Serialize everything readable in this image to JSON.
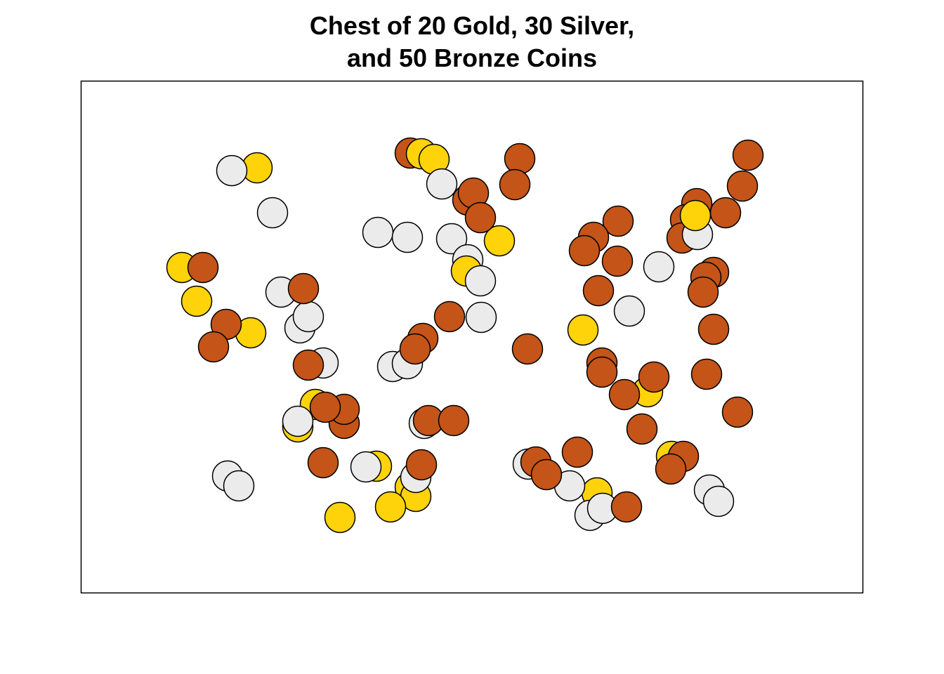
{
  "chart_data": {
    "type": "scatter",
    "title_lines": [
      "Chest of 20 Gold, 30 Silver,",
      "and 50 Bronze Coins"
    ],
    "xlabel": "",
    "ylabel": "",
    "axes_visible": false,
    "grid": false,
    "legend": "none",
    "colors": {
      "gold": "#FFD30A",
      "silver": "#EBEBEB",
      "bronze": "#C45418",
      "outline": "#000000"
    },
    "series": [
      {
        "key": "gold",
        "points": [
          [
            366,
            239
          ],
          [
            600,
            219
          ],
          [
            618,
            227
          ],
          [
            711,
            343
          ],
          [
            259,
            381
          ],
          [
            280,
            429
          ],
          [
            357,
            474
          ],
          [
            664,
            386
          ],
          [
            830,
            470
          ],
          [
            449,
            576
          ],
          [
            424,
            608
          ],
          [
            536,
            664
          ],
          [
            922,
            558
          ],
          [
            956,
            650
          ],
          [
            584,
            694
          ],
          [
            592,
            707
          ],
          [
            556,
            722
          ],
          [
            484,
            737
          ],
          [
            850,
            702
          ],
          [
            990,
            307
          ]
        ]
      },
      {
        "key": "silver",
        "points": [
          [
            330,
            243
          ],
          [
            388,
            303
          ],
          [
            629,
            262
          ],
          [
            538,
            331
          ],
          [
            580,
            338
          ],
          [
            643,
            340
          ],
          [
            666,
            370
          ],
          [
            684,
            400
          ],
          [
            400,
            416
          ],
          [
            427,
            467
          ],
          [
            439,
            451
          ],
          [
            685,
            452
          ],
          [
            460,
            517
          ],
          [
            559,
            522
          ],
          [
            580,
            518
          ],
          [
            993,
            334
          ],
          [
            938,
            380
          ],
          [
            896,
            443
          ],
          [
            604,
            603
          ],
          [
            424,
            600
          ],
          [
            324,
            678
          ],
          [
            340,
            692
          ],
          [
            521,
            665
          ],
          [
            592,
            680
          ],
          [
            752,
            661
          ],
          [
            811,
            692
          ],
          [
            840,
            734
          ],
          [
            858,
            724
          ],
          [
            1010,
            698
          ],
          [
            1023,
            714
          ]
        ]
      },
      {
        "key": "bronze",
        "points": [
          [
            584,
            218
          ],
          [
            740,
            226
          ],
          [
            733,
            263
          ],
          [
            666,
            285
          ],
          [
            674,
            275
          ],
          [
            684,
            310
          ],
          [
            1065,
            221
          ],
          [
            1057,
            265
          ],
          [
            1033,
            303
          ],
          [
            992,
            290
          ],
          [
            976,
            313
          ],
          [
            971,
            339
          ],
          [
            880,
            315
          ],
          [
            845,
            338
          ],
          [
            832,
            357
          ],
          [
            879,
            372
          ],
          [
            852,
            414
          ],
          [
            1016,
            388
          ],
          [
            1005,
            395
          ],
          [
            1001,
            416
          ],
          [
            289,
            381
          ],
          [
            432,
            411
          ],
          [
            322,
            462
          ],
          [
            304,
            494
          ],
          [
            640,
            451
          ],
          [
            602,
            482
          ],
          [
            591,
            497
          ],
          [
            751,
            497
          ],
          [
            1016,
            469
          ],
          [
            439,
            520
          ],
          [
            857,
            517
          ],
          [
            857,
            530
          ],
          [
            1006,
            533
          ],
          [
            931,
            537
          ],
          [
            889,
            562
          ],
          [
            1050,
            587
          ],
          [
            490,
            603
          ],
          [
            490,
            583
          ],
          [
            463,
            580
          ],
          [
            610,
            599
          ],
          [
            646,
            599
          ],
          [
            914,
            611
          ],
          [
            822,
            644
          ],
          [
            460,
            659
          ],
          [
            600,
            662
          ],
          [
            763,
            658
          ],
          [
            778,
            676
          ],
          [
            973,
            650
          ],
          [
            955,
            668
          ],
          [
            892,
            722
          ]
        ]
      }
    ]
  }
}
